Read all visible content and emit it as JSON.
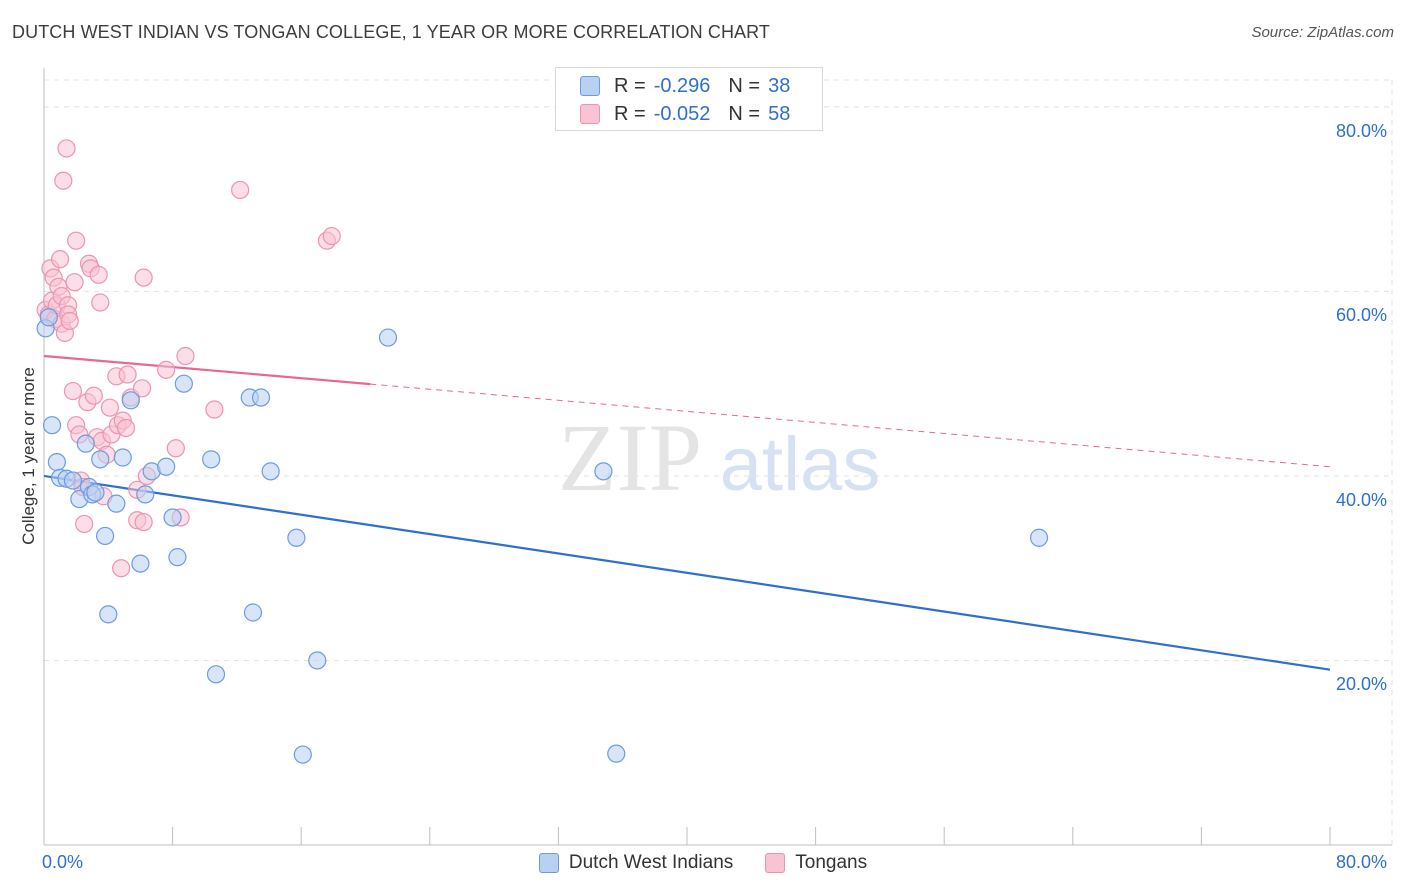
{
  "title": "DUTCH WEST INDIAN VS TONGAN COLLEGE, 1 YEAR OR MORE CORRELATION CHART",
  "source": "Source: ZipAtlas.com",
  "watermark": {
    "zip": "ZIP",
    "atlas": "atlas"
  },
  "colors": {
    "blue": "#2e6fd0",
    "blue_fill": "#b8d0f2",
    "blue_stroke": "#6d9be0",
    "pink": "#e8688f",
    "pink_fill": "#f8c3d3",
    "pink_stroke": "#ee94b0",
    "grid": "#e2e2e2",
    "axis_text": "#2e6fd0"
  },
  "legend": {
    "rows": [
      {
        "r_label": "R =",
        "r_value": "-0.296",
        "n_label": "N =",
        "n_value": "38"
      },
      {
        "r_label": "R =",
        "r_value": "-0.052",
        "n_label": "N =",
        "n_value": "58"
      }
    ]
  },
  "bottom_legend": {
    "series1": "Dutch West Indians",
    "series2": "Tongans"
  },
  "axes": {
    "x_min_label": "0.0%",
    "x_max_label": "80.0%",
    "y_tick_labels": [
      "80.0%",
      "60.0%",
      "40.0%",
      "20.0%"
    ]
  },
  "chart_data": {
    "type": "scatter",
    "title": "DUTCH WEST INDIAN VS TONGAN COLLEGE, 1 YEAR OR MORE CORRELATION CHART",
    "xlabel": "",
    "ylabel": "College, 1 year or more",
    "xlim": [
      0,
      80
    ],
    "ylim": [
      0,
      84
    ],
    "yticks": [
      20,
      40,
      60,
      80
    ],
    "grid": true,
    "series": [
      {
        "name": "Dutch West Indians",
        "color": "#2e6fd0",
        "r": -0.296,
        "n": 38,
        "trend": {
          "x0": 0,
          "y0": 40.0,
          "x1": 80,
          "y1": 19.0
        },
        "points": [
          [
            0.1,
            56.0
          ],
          [
            0.5,
            45.5
          ],
          [
            0.8,
            41.5
          ],
          [
            1.0,
            39.8
          ],
          [
            1.4,
            39.7
          ],
          [
            1.8,
            39.5
          ],
          [
            2.2,
            37.5
          ],
          [
            2.6,
            43.5
          ],
          [
            2.8,
            38.8
          ],
          [
            3.0,
            38.0
          ],
          [
            3.5,
            41.8
          ],
          [
            3.8,
            33.5
          ],
          [
            4.0,
            25.0
          ],
          [
            4.5,
            37.0
          ],
          [
            4.9,
            42.0
          ],
          [
            5.4,
            48.2
          ],
          [
            6.0,
            30.5
          ],
          [
            6.3,
            38.0
          ],
          [
            6.7,
            40.5
          ],
          [
            7.6,
            41.0
          ],
          [
            8.0,
            35.5
          ],
          [
            8.3,
            31.2
          ],
          [
            8.7,
            50.0
          ],
          [
            10.4,
            41.8
          ],
          [
            12.8,
            48.5
          ],
          [
            13.0,
            25.2
          ],
          [
            13.5,
            48.5
          ],
          [
            14.1,
            40.5
          ],
          [
            15.7,
            33.3
          ],
          [
            16.1,
            9.8
          ],
          [
            17.0,
            20.0
          ],
          [
            21.4,
            55.0
          ],
          [
            10.7,
            18.5
          ],
          [
            34.8,
            40.5
          ],
          [
            35.6,
            9.9
          ],
          [
            61.9,
            33.3
          ],
          [
            0.3,
            57.2
          ],
          [
            3.2,
            38.2
          ]
        ]
      },
      {
        "name": "Tongans",
        "color": "#e8688f",
        "r": -0.052,
        "n": 58,
        "trend": {
          "x0": 0,
          "y0": 53.0,
          "x1": 80,
          "y1": 41.0,
          "solid_until_x": 20.3
        },
        "points": [
          [
            0.1,
            58.0
          ],
          [
            0.3,
            57.5
          ],
          [
            0.4,
            62.5
          ],
          [
            0.5,
            59.0
          ],
          [
            0.6,
            61.5
          ],
          [
            0.7,
            57.0
          ],
          [
            0.8,
            58.5
          ],
          [
            0.9,
            60.5
          ],
          [
            1.0,
            63.5
          ],
          [
            1.1,
            59.5
          ],
          [
            1.1,
            56.5
          ],
          [
            1.2,
            72.0
          ],
          [
            1.3,
            55.5
          ],
          [
            1.4,
            75.5
          ],
          [
            1.5,
            58.5
          ],
          [
            1.5,
            57.5
          ],
          [
            1.6,
            56.8
          ],
          [
            1.8,
            49.2
          ],
          [
            1.9,
            61.0
          ],
          [
            2.0,
            45.5
          ],
          [
            2.0,
            65.5
          ],
          [
            2.2,
            44.5
          ],
          [
            2.3,
            39.5
          ],
          [
            2.4,
            38.8
          ],
          [
            2.5,
            34.8
          ],
          [
            2.7,
            48.0
          ],
          [
            2.8,
            63.0
          ],
          [
            2.9,
            62.5
          ],
          [
            3.1,
            48.7
          ],
          [
            3.3,
            44.2
          ],
          [
            3.4,
            61.8
          ],
          [
            3.5,
            58.8
          ],
          [
            3.6,
            43.8
          ],
          [
            3.7,
            37.8
          ],
          [
            3.9,
            42.3
          ],
          [
            4.1,
            47.4
          ],
          [
            4.2,
            44.5
          ],
          [
            4.5,
            50.8
          ],
          [
            4.6,
            45.5
          ],
          [
            4.9,
            46.0
          ],
          [
            5.1,
            45.2
          ],
          [
            5.4,
            48.5
          ],
          [
            5.2,
            51.0
          ],
          [
            5.8,
            38.5
          ],
          [
            6.1,
            49.5
          ],
          [
            6.2,
            61.5
          ],
          [
            6.4,
            40.0
          ],
          [
            5.8,
            35.2
          ],
          [
            6.2,
            35.0
          ],
          [
            7.6,
            51.5
          ],
          [
            8.2,
            43.0
          ],
          [
            8.5,
            35.5
          ],
          [
            8.8,
            53.0
          ],
          [
            10.6,
            47.2
          ],
          [
            12.2,
            71.0
          ],
          [
            17.6,
            65.5
          ],
          [
            17.9,
            66.0
          ],
          [
            4.8,
            30.0
          ]
        ]
      }
    ]
  }
}
